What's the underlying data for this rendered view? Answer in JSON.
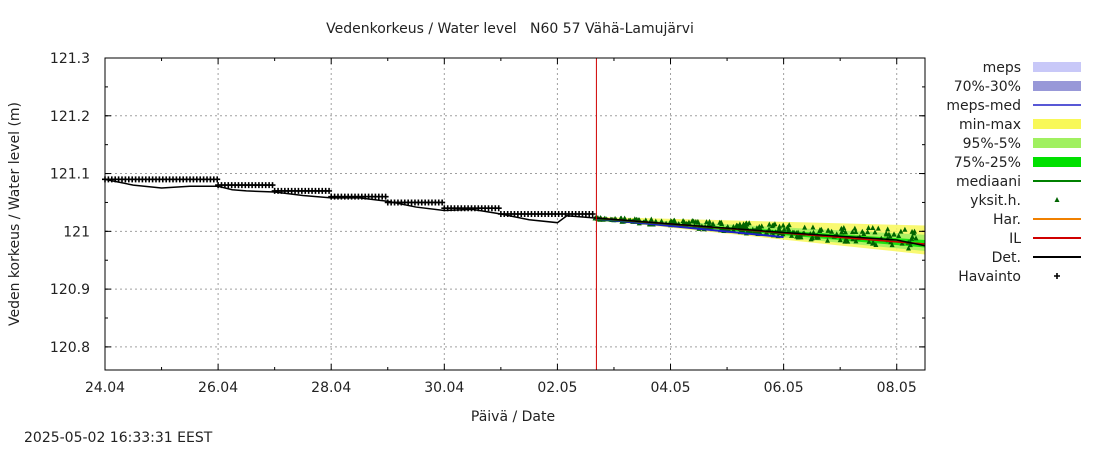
{
  "chart_data": {
    "type": "line",
    "title": "Vedenkorkeus / Water level   N60 57 Vähä-Lamujärvi",
    "xlabel": "Päivä / Date",
    "ylabel": "Veden korkeus / Water level (m)",
    "ylim": [
      120.76,
      121.3
    ],
    "y_ticks": [
      121.3,
      121.2,
      121.1,
      121.0,
      120.9,
      120.8
    ],
    "y_tick_labels": [
      "121.3",
      "121.2",
      "121.1",
      "121",
      "120.9",
      "120.8"
    ],
    "x_start_date": "2025-04-24",
    "x_end_date": "2025-05-08 12:00",
    "x_ticks": [
      "2025-04-24",
      "2025-04-26",
      "2025-04-28",
      "2025-04-30",
      "2025-05-02",
      "2025-05-04",
      "2025-05-06",
      "2025-05-08"
    ],
    "x_tick_labels": [
      "24.04",
      "26.04",
      "28.04",
      "30.04",
      "02.05",
      "04.05",
      "06.05",
      "08.05"
    ],
    "grid": true,
    "current_time_marker": "2025-05-02 16:33",
    "legend_position": "right",
    "series": [
      {
        "name": "Havainto",
        "kind": "observation",
        "points": [
          [
            "2025-04-24 00:00",
            121.09
          ],
          [
            "2025-04-26 00:00",
            121.09
          ],
          [
            "2025-04-26 00:00",
            121.08
          ],
          [
            "2025-04-27 00:00",
            121.08
          ],
          [
            "2025-04-27 00:00",
            121.07
          ],
          [
            "2025-04-28 00:00",
            121.07
          ],
          [
            "2025-04-28 00:00",
            121.06
          ],
          [
            "2025-04-29 00:00",
            121.06
          ],
          [
            "2025-04-29 00:00",
            121.05
          ],
          [
            "2025-04-30 00:00",
            121.05
          ],
          [
            "2025-04-30 00:00",
            121.04
          ],
          [
            "2025-05-01 00:00",
            121.04
          ],
          [
            "2025-05-01 00:00",
            121.03
          ],
          [
            "2025-05-02 16:00",
            121.03
          ]
        ]
      },
      {
        "name": "Det.",
        "kind": "line",
        "points": [
          [
            "2025-04-24 00:00",
            121.09
          ],
          [
            "2025-04-24 12:00",
            121.08
          ],
          [
            "2025-04-25 00:00",
            121.075
          ],
          [
            "2025-04-25 12:00",
            121.078
          ],
          [
            "2025-04-26 00:00",
            121.078
          ],
          [
            "2025-04-26 06:00",
            121.072
          ],
          [
            "2025-04-26 12:00",
            121.07
          ],
          [
            "2025-04-27 00:00",
            121.068
          ],
          [
            "2025-04-27 12:00",
            121.062
          ],
          [
            "2025-04-28 00:00",
            121.058
          ],
          [
            "2025-04-28 12:00",
            121.058
          ],
          [
            "2025-04-29 00:00",
            121.052
          ],
          [
            "2025-04-29 12:00",
            121.042
          ],
          [
            "2025-04-30 00:00",
            121.036
          ],
          [
            "2025-04-30 12:00",
            121.038
          ],
          [
            "2025-05-01 00:00",
            121.03
          ],
          [
            "2025-05-01 12:00",
            121.02
          ],
          [
            "2025-05-02 00:00",
            121.015
          ],
          [
            "2025-05-02 04:00",
            121.027
          ],
          [
            "2025-05-02 16:00",
            121.023
          ],
          [
            "2025-05-04 00:00",
            121.013
          ],
          [
            "2025-05-06 00:00",
            120.998
          ],
          [
            "2025-05-08 00:00",
            120.985
          ],
          [
            "2025-05-08 12:00",
            120.975
          ]
        ]
      },
      {
        "name": "min-max",
        "kind": "band",
        "lower": [
          [
            "2025-05-02 16:00",
            121.02
          ],
          [
            "2025-05-08 12:00",
            120.96
          ]
        ],
        "upper": [
          [
            "2025-05-02 16:00",
            121.025
          ],
          [
            "2025-05-08 12:00",
            121.01
          ]
        ]
      },
      {
        "name": "95%-5%",
        "kind": "band",
        "lower": [
          [
            "2025-05-02 16:00",
            121.021
          ],
          [
            "2025-05-08 12:00",
            120.966
          ]
        ],
        "upper": [
          [
            "2025-05-02 16:00",
            121.024
          ],
          [
            "2025-05-08 12:00",
            120.994
          ]
        ]
      },
      {
        "name": "75%-25%",
        "kind": "band",
        "lower": [
          [
            "2025-05-02 16:00",
            121.022
          ],
          [
            "2025-05-08 12:00",
            120.972
          ]
        ],
        "upper": [
          [
            "2025-05-02 16:00",
            121.023
          ],
          [
            "2025-05-08 12:00",
            120.985
          ]
        ]
      },
      {
        "name": "mediaani",
        "kind": "line",
        "points": [
          [
            "2025-05-02 16:00",
            121.022
          ],
          [
            "2025-05-08 12:00",
            120.978
          ]
        ]
      },
      {
        "name": "IL",
        "kind": "line",
        "points": [
          [
            "2025-05-02 16:00",
            121.023
          ],
          [
            "2025-05-08 12:00",
            120.978
          ]
        ]
      },
      {
        "name": "meps-med",
        "kind": "line",
        "points": [
          [
            "2025-05-02 16:00",
            121.022
          ],
          [
            "2025-05-06 00:00",
            120.99
          ]
        ]
      }
    ],
    "legend": [
      {
        "label": "meps",
        "style": "swatch",
        "color": "#c8c8f8"
      },
      {
        "label": "70%-30%",
        "style": "swatch",
        "color": "#9898d8"
      },
      {
        "label": "meps-med",
        "style": "line",
        "color": "#2020c8"
      },
      {
        "label": "min-max",
        "style": "swatch",
        "color": "#f8f858"
      },
      {
        "label": "95%-5%",
        "style": "swatch",
        "color": "#a0f060"
      },
      {
        "label": "75%-25%",
        "style": "swatch",
        "color": "#00e000"
      },
      {
        "label": "mediaani",
        "style": "line",
        "color": "#008000"
      },
      {
        "label": "yksit.h.",
        "style": "triangle",
        "color": "#006400"
      },
      {
        "label": "Har.",
        "style": "line",
        "color": "#f08000"
      },
      {
        "label": "IL",
        "style": "line",
        "color": "#d00000"
      },
      {
        "label": "Det.",
        "style": "line",
        "color": "#000000"
      },
      {
        "label": "Havainto",
        "style": "plus",
        "color": "#000000"
      }
    ]
  },
  "footer": {
    "timestamp": "2025-05-02 16:33:31 EEST"
  }
}
